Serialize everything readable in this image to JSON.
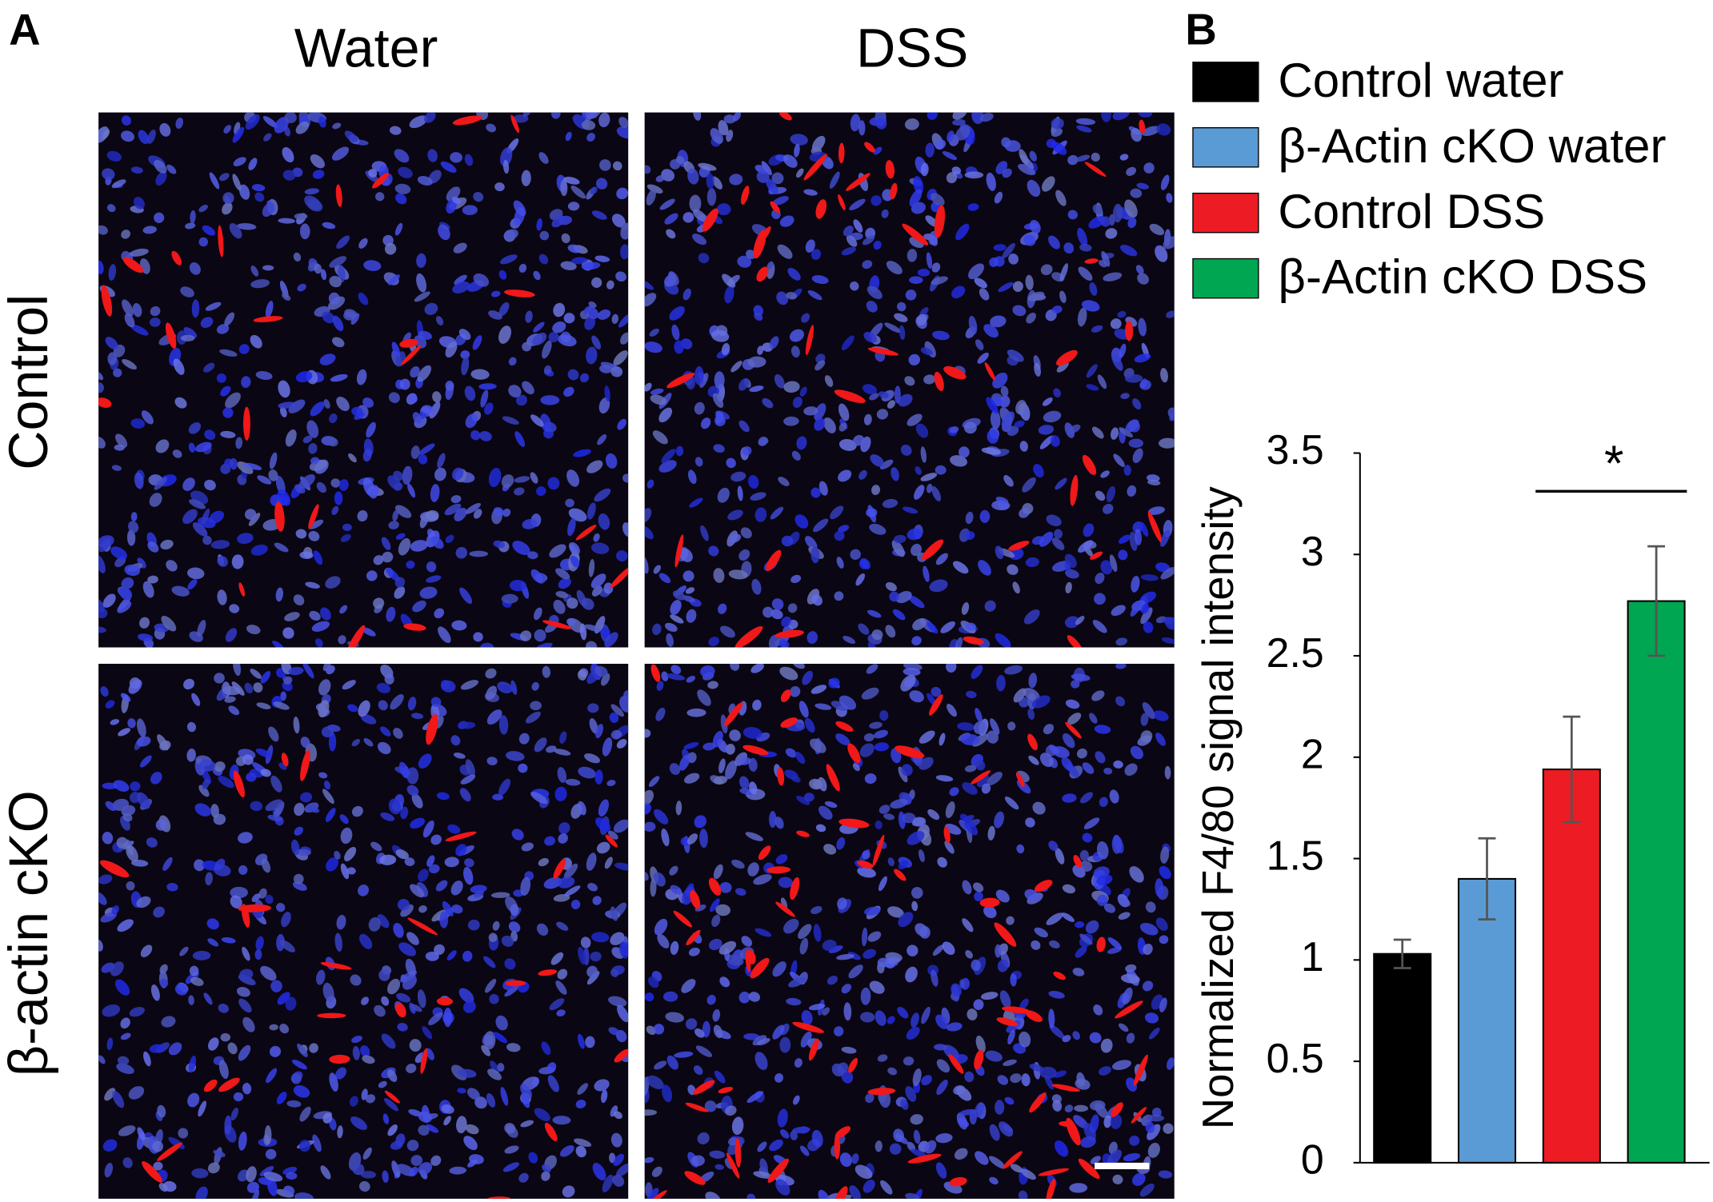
{
  "figure": {
    "panel_a": {
      "label": "A",
      "columns": [
        "Water",
        "DSS"
      ],
      "rows": [
        "Control",
        "β-actin cKO"
      ]
    }
  },
  "chart_data": {
    "type": "bar",
    "panel_label": "B",
    "ylabel": "Normalized F4/80 signal intensity",
    "series": [
      {
        "name": "Control water",
        "color": "#000000",
        "values": [
          1.03
        ],
        "errors": [
          0.07
        ]
      },
      {
        "name": "β-Actin cKO water",
        "color": "#5b9bd5",
        "values": [
          1.4
        ],
        "errors": [
          0.2
        ]
      },
      {
        "name": "Control  DSS",
        "color": "#ed1c24",
        "values": [
          1.94
        ],
        "errors": [
          0.26
        ]
      },
      {
        "name": "β-Actin cKO  DSS",
        "color": "#00a651",
        "values": [
          2.77
        ],
        "errors": [
          0.27
        ]
      }
    ],
    "annotation": "*",
    "ylim": [
      0,
      3.5
    ],
    "yticks": [
      0,
      0.5,
      1,
      1.5,
      2,
      2.5,
      3,
      3.5
    ],
    "grid": false,
    "legend": "top"
  }
}
